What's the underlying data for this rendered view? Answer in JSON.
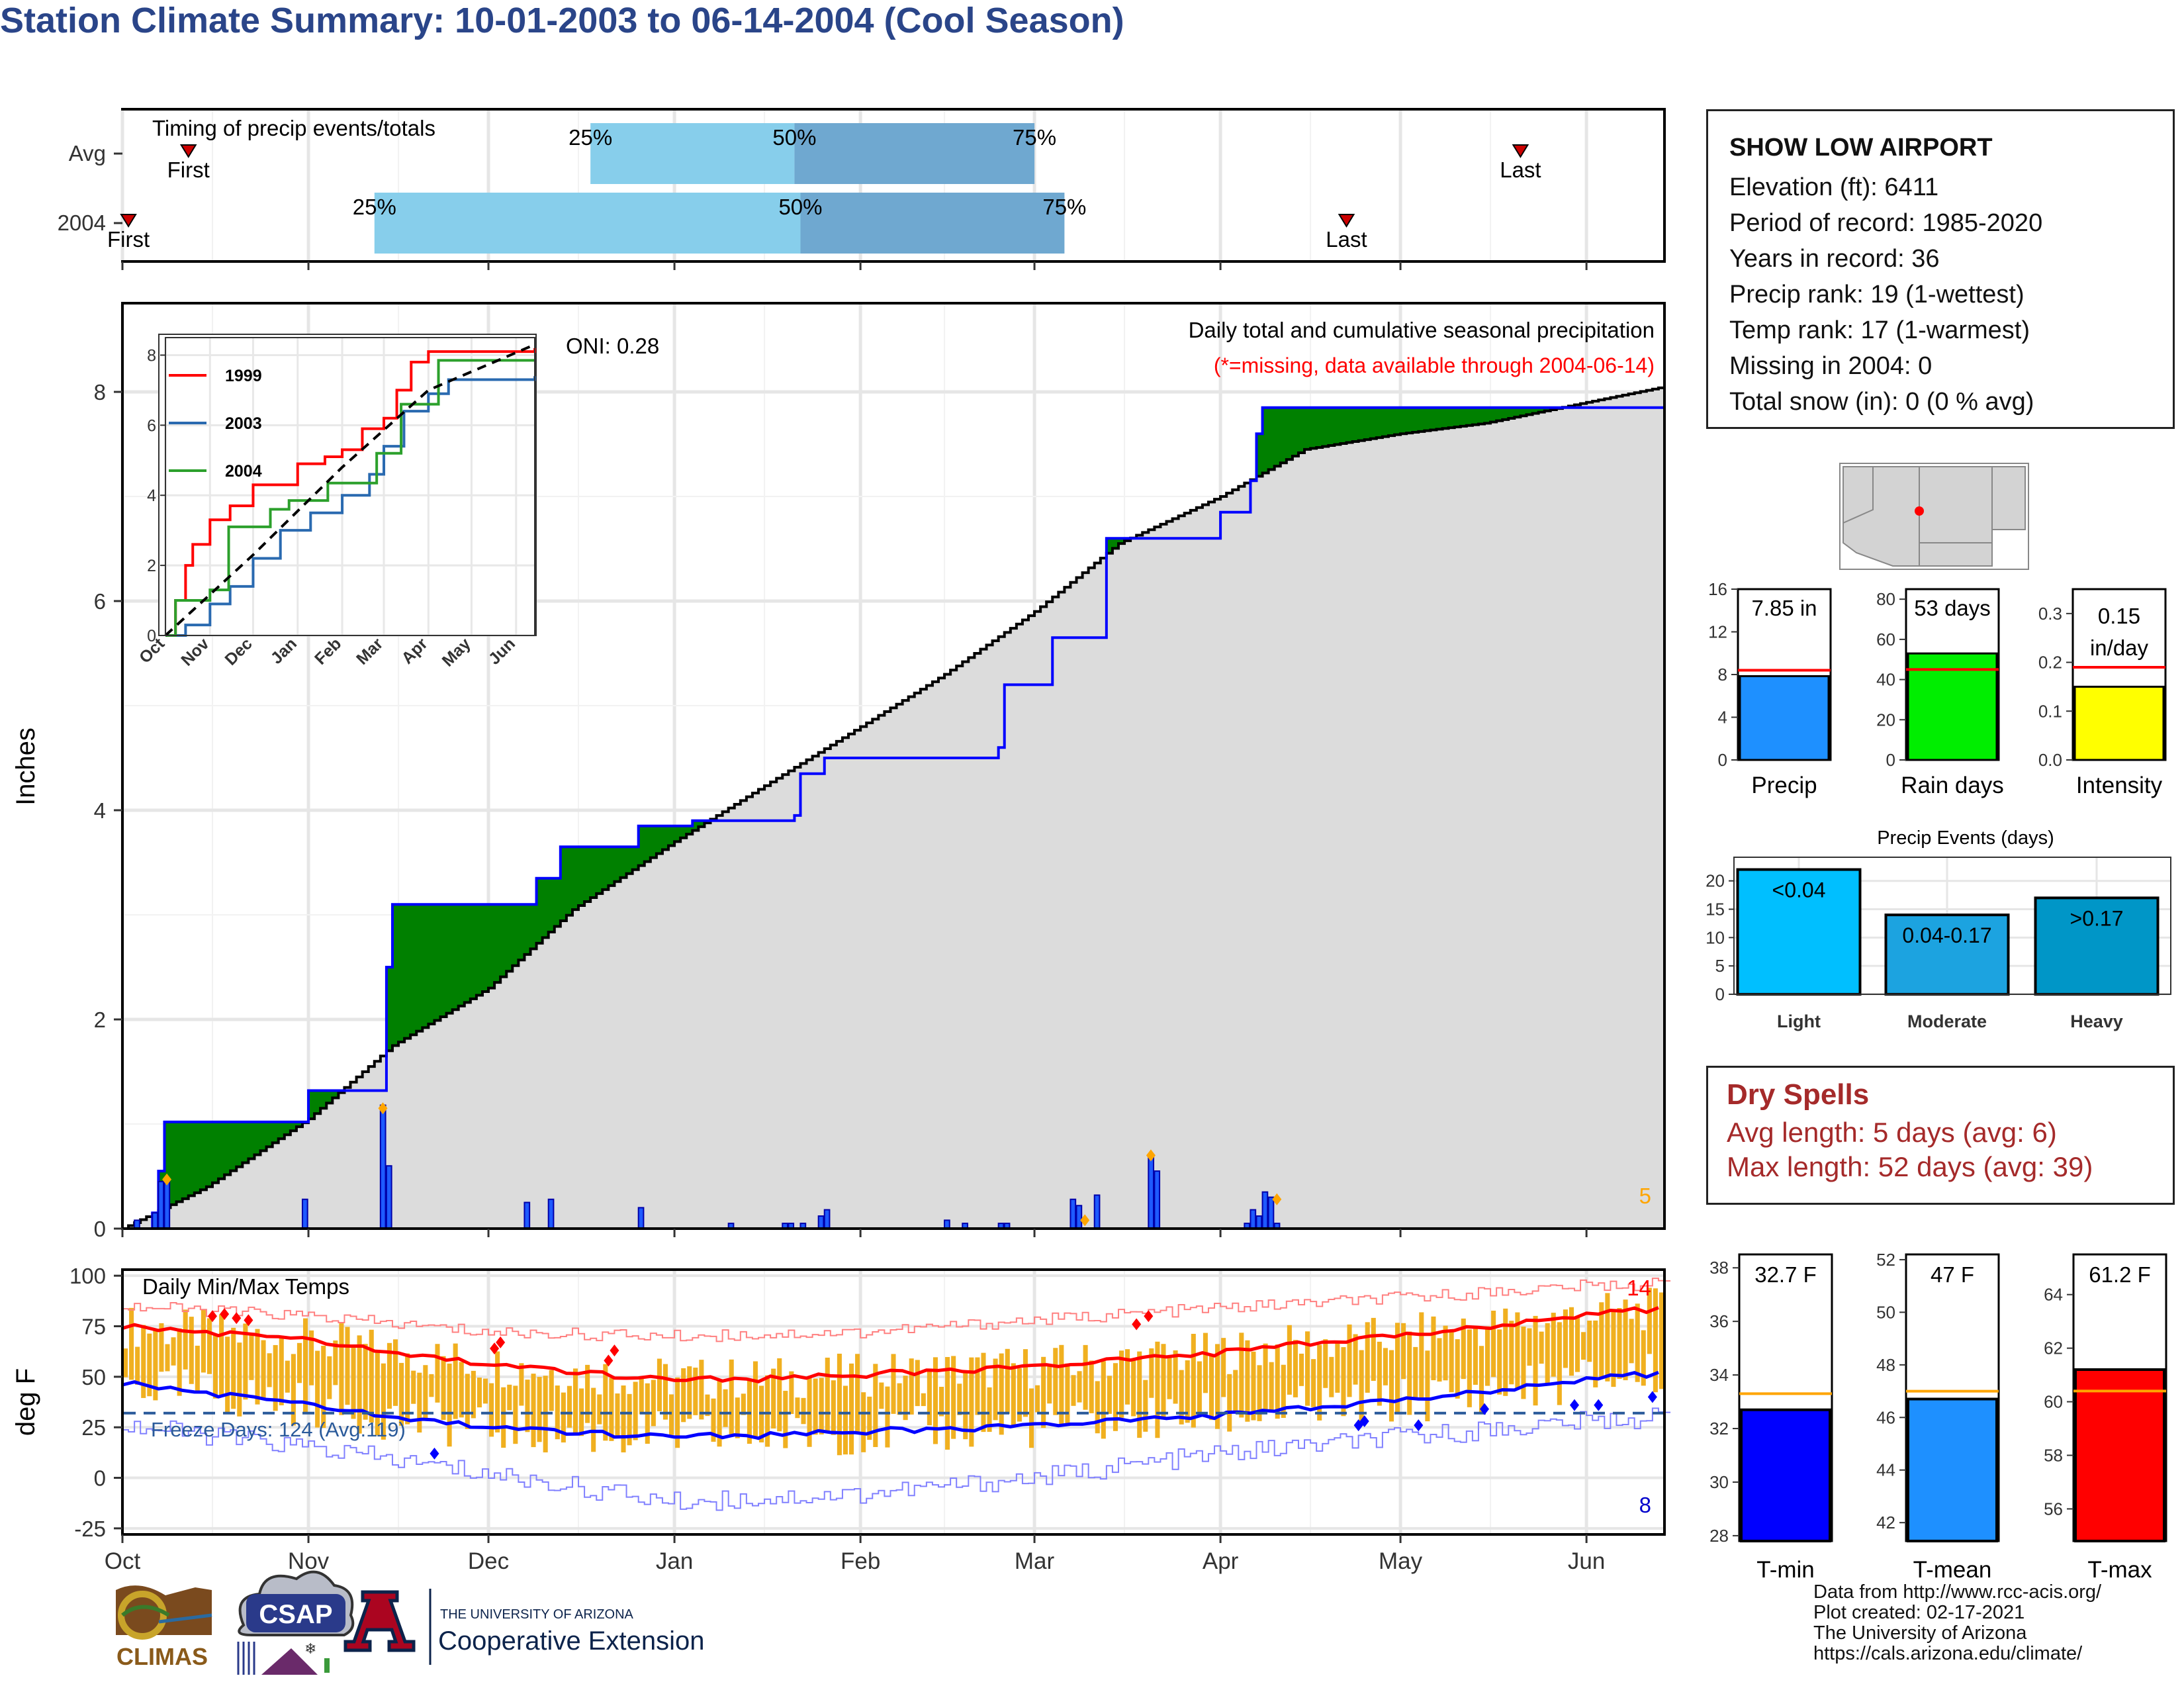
{
  "title": "Station Climate Summary: 10-01-2003 to 06-14-2004 (Cool Season)",
  "timing": {
    "title": "Timing of precip events/totals",
    "rows": [
      {
        "label": "Avg",
        "first": "Oct 12",
        "p25": "Dec 18",
        "p50": "Jan 21",
        "p75": "Mar 1",
        "last": "May 21"
      },
      {
        "label": "2004",
        "first": "Oct 2",
        "p25": "Nov 12",
        "p50": "Jan 22",
        "p75": "Mar 6",
        "last": "Apr 22"
      }
    ],
    "marker_labels": {
      "first": "First",
      "last": "Last",
      "p25": "25%",
      "p50": "50%",
      "p75": "75%"
    },
    "colors": {
      "light": "#87ceeb",
      "dark": "#6fa8d0",
      "marker": "#cc0000"
    }
  },
  "station": {
    "name": "SHOW LOW AIRPORT",
    "lines": [
      "Elevation (ft): 6411",
      "Period of record: 1985-2020",
      "Years in record: 36",
      "Precip rank: 19 (1-wettest)",
      "Temp rank: 17 (1-warmest)",
      "Missing in 2004: 0",
      "Total snow (in): 0 (0 % avg)"
    ]
  },
  "precip_panel": {
    "ylabel": "Inches",
    "note1": "Daily total and cumulative seasonal precipitation",
    "note2": "(*=missing, data available through 2004-06-14)",
    "oni": "ONI: 0.28",
    "corner_value": "5",
    "yticks": [
      "0",
      "2",
      "4",
      "6",
      "8"
    ]
  },
  "temp_panel": {
    "ylabel": "deg F",
    "title": "Daily Min/Max Temps",
    "freeze": "Freeze Days: 124 (Avg:119)",
    "max_count": "14",
    "min_count": "8",
    "yticks": [
      "100",
      "75",
      "50",
      "25",
      "0",
      "-25"
    ]
  },
  "months": [
    "Oct",
    "Nov",
    "Dec",
    "Jan",
    "Feb",
    "Mar",
    "Apr",
    "May",
    "Jun"
  ],
  "inset": {
    "yticks": [
      "0",
      "2",
      "4",
      "6",
      "8"
    ],
    "xticks": [
      "Oct",
      "Nov",
      "Dec",
      "Jan",
      "Feb",
      "Mar",
      "Apr",
      "May",
      "Jun"
    ],
    "legend": [
      "1999",
      "2003",
      "2004"
    ]
  },
  "summary_bars": {
    "precip": {
      "label": "Precip",
      "value_text": "7.85 in",
      "value": 7.85,
      "avg": 8.4,
      "max": 16,
      "ticks": [
        "16",
        "12",
        "8",
        "4",
        "0"
      ],
      "color": "#1e90ff"
    },
    "raindays": {
      "label": "Rain days",
      "value_text": "53 days",
      "value": 53,
      "avg": 45,
      "max": 85,
      "ticks": [
        "80",
        "60",
        "40",
        "20",
        "0"
      ],
      "color": "#00ee00"
    },
    "intensity": {
      "label": "Intensity",
      "value_text": "0.15",
      "value_text2": "in/day",
      "value": 0.15,
      "avg": 0.19,
      "max": 0.35,
      "ticks": [
        "0.3",
        "0.2",
        "0.1",
        "0.0"
      ],
      "color": "#ffff00"
    }
  },
  "events": {
    "title": "Precip Events (days)",
    "categories": [
      "Light",
      "Moderate",
      "Heavy"
    ],
    "values": [
      22,
      14,
      17
    ],
    "bar_labels": [
      "<0.04",
      "0.04-0.17",
      ">0.17"
    ],
    "ticks": [
      "20",
      "15",
      "10",
      "5",
      "0"
    ],
    "colors": [
      "#00bfff",
      "#1ca3e0",
      "#0096c7"
    ]
  },
  "dry_spells": {
    "title": "Dry Spells",
    "avg": "Avg length: 5 days (avg: 6)",
    "max": "Max length: 52 days (avg: 39)"
  },
  "temp_bars": {
    "tmin": {
      "label": "T-min",
      "value_text": "32.7 F",
      "value": 32.7,
      "avg": 33.3,
      "ticks": [
        "38",
        "36",
        "34",
        "32",
        "30",
        "28"
      ],
      "color": "#0000ff"
    },
    "tmean": {
      "label": "T-mean",
      "value_text": "47 F",
      "value": 46.7,
      "avg": 47.0,
      "ticks": [
        "52",
        "50",
        "48",
        "46",
        "44",
        "42"
      ],
      "color": "#1e90ff"
    },
    "tmax": {
      "label": "T-max",
      "value_text": "61.2 F",
      "value": 61.2,
      "avg": 60.4,
      "ticks": [
        "64",
        "62",
        "60",
        "58",
        "56"
      ],
      "color": "#ff0000"
    }
  },
  "credits": [
    "Data from http://www.rcc-acis.org/",
    "Plot created: 02-17-2021",
    "The University of Arizona",
    "https://cals.arizona.edu/climate/"
  ],
  "logos": {
    "climas": "CLIMAS",
    "csap": "CSAP",
    "ua_top": "THE UNIVERSITY OF ARIZONA",
    "ua_bottom": "Cooperative Extension"
  },
  "chart_data": {
    "type": "area",
    "title": "Daily total and cumulative seasonal precipitation",
    "ylabel": "Inches",
    "ylim": [
      0,
      8.8
    ],
    "x_domain": [
      "2003-10-01",
      "2004-06-14"
    ],
    "series": [
      {
        "name": "2004 cumulative",
        "points": [
          [
            "2003-10-01",
            0.0
          ],
          [
            "2003-10-06",
            0.15
          ],
          [
            "2003-10-07",
            0.55
          ],
          [
            "2003-10-08",
            1.02
          ],
          [
            "2003-10-29",
            1.02
          ],
          [
            "2003-11-01",
            1.32
          ],
          [
            "2003-11-13",
            1.32
          ],
          [
            "2003-11-14",
            2.5
          ],
          [
            "2003-11-15",
            3.1
          ],
          [
            "2003-12-08",
            3.1
          ],
          [
            "2003-12-09",
            3.35
          ],
          [
            "2003-12-12",
            3.35
          ],
          [
            "2003-12-13",
            3.65
          ],
          [
            "2003-12-25",
            3.65
          ],
          [
            "2003-12-26",
            3.85
          ],
          [
            "2004-01-04",
            3.9
          ],
          [
            "2004-01-21",
            3.95
          ],
          [
            "2004-01-22",
            4.35
          ],
          [
            "2004-01-26",
            4.5
          ],
          [
            "2004-02-24",
            4.6
          ],
          [
            "2004-02-25",
            5.2
          ],
          [
            "2004-03-04",
            5.65
          ],
          [
            "2004-03-12",
            5.65
          ],
          [
            "2004-03-13",
            6.6
          ],
          [
            "2004-04-01",
            6.85
          ],
          [
            "2004-04-06",
            7.15
          ],
          [
            "2004-04-07",
            7.6
          ],
          [
            "2004-04-08",
            7.85
          ],
          [
            "2004-06-14",
            7.85
          ]
        ]
      },
      {
        "name": "Avg cumulative",
        "points": [
          [
            "2003-10-01",
            0.0
          ],
          [
            "2003-10-15",
            0.4
          ],
          [
            "2003-11-01",
            1.05
          ],
          [
            "2003-11-15",
            1.75
          ],
          [
            "2003-12-01",
            2.3
          ],
          [
            "2003-12-15",
            3.05
          ],
          [
            "2004-01-01",
            3.7
          ],
          [
            "2004-01-15",
            4.2
          ],
          [
            "2004-02-01",
            4.8
          ],
          [
            "2004-02-15",
            5.3
          ],
          [
            "2004-03-01",
            5.9
          ],
          [
            "2004-03-15",
            6.55
          ],
          [
            "2004-04-01",
            7.0
          ],
          [
            "2004-04-15",
            7.45
          ],
          [
            "2004-05-01",
            7.6
          ],
          [
            "2004-05-15",
            7.7
          ],
          [
            "2004-06-01",
            7.9
          ],
          [
            "2004-06-14",
            8.05
          ]
        ]
      }
    ],
    "daily_precip": [
      [
        "2003-10-03",
        0.08
      ],
      [
        "2003-10-06",
        0.15
      ],
      [
        "2003-10-07",
        0.45
      ],
      [
        "2003-10-08",
        0.47
      ],
      [
        "2003-10-31",
        0.28
      ],
      [
        "2003-11-13",
        1.18
      ],
      [
        "2003-11-14",
        0.6
      ],
      [
        "2003-12-07",
        0.25
      ],
      [
        "2003-12-11",
        0.28
      ],
      [
        "2003-12-26",
        0.2
      ],
      [
        "2004-01-10",
        0.05
      ],
      [
        "2004-01-19",
        0.05
      ],
      [
        "2004-01-20",
        0.05
      ],
      [
        "2004-01-22",
        0.05
      ],
      [
        "2004-01-25",
        0.12
      ],
      [
        "2004-01-26",
        0.18
      ],
      [
        "2004-02-15",
        0.08
      ],
      [
        "2004-02-18",
        0.05
      ],
      [
        "2004-02-24",
        0.05
      ],
      [
        "2004-02-25",
        0.05
      ],
      [
        "2004-03-07",
        0.28
      ],
      [
        "2004-03-08",
        0.22
      ],
      [
        "2004-03-11",
        0.32
      ],
      [
        "2004-03-20",
        0.68
      ],
      [
        "2004-03-21",
        0.55
      ],
      [
        "2004-04-05",
        0.05
      ],
      [
        "2004-04-06",
        0.18
      ],
      [
        "2004-04-07",
        0.12
      ],
      [
        "2004-04-08",
        0.35
      ],
      [
        "2004-04-09",
        0.3
      ],
      [
        "2004-04-10",
        0.05
      ]
    ],
    "record_markers": [
      [
        "2003-10-08",
        0.47
      ],
      [
        "2003-11-13",
        1.15
      ],
      [
        "2004-03-09",
        0.08
      ],
      [
        "2004-03-20",
        0.7
      ],
      [
        "2004-04-10",
        0.28
      ]
    ],
    "temperature": {
      "ylim": [
        -28,
        103
      ],
      "series": [
        {
          "name": "Avg max",
          "points": [
            [
              "2003-10-01",
              75
            ],
            [
              "2003-10-15",
              72
            ],
            [
              "2003-11-01",
              68
            ],
            [
              "2003-11-15",
              62
            ],
            [
              "2003-12-01",
              56
            ],
            [
              "2003-12-15",
              52
            ],
            [
              "2004-01-01",
              49
            ],
            [
              "2004-01-15",
              49
            ],
            [
              "2004-02-01",
              51
            ],
            [
              "2004-02-15",
              53
            ],
            [
              "2004-03-01",
              55
            ],
            [
              "2004-03-15",
              58
            ],
            [
              "2004-04-01",
              62
            ],
            [
              "2004-04-15",
              66
            ],
            [
              "2004-05-01",
              70
            ],
            [
              "2004-05-15",
              75
            ],
            [
              "2004-06-01",
              81
            ],
            [
              "2004-06-14",
              84
            ]
          ]
        },
        {
          "name": "Avg min",
          "points": [
            [
              "2003-10-01",
              47
            ],
            [
              "2003-10-15",
              42
            ],
            [
              "2003-11-01",
              36
            ],
            [
              "2003-11-15",
              30
            ],
            [
              "2003-12-01",
              25
            ],
            [
              "2003-12-15",
              22
            ],
            [
              "2004-01-01",
              21
            ],
            [
              "2004-01-15",
              21
            ],
            [
              "2004-02-01",
              23
            ],
            [
              "2004-02-15",
              24
            ],
            [
              "2004-03-01",
              26
            ],
            [
              "2004-03-15",
              28
            ],
            [
              "2004-04-01",
              31
            ],
            [
              "2004-04-15",
              34
            ],
            [
              "2004-05-01",
              38
            ],
            [
              "2004-05-15",
              43
            ],
            [
              "2004-06-01",
              49
            ],
            [
              "2004-06-14",
              52
            ]
          ]
        },
        {
          "name": "Record max",
          "points": [
            [
              "2003-10-01",
              85
            ],
            [
              "2003-11-01",
              80
            ],
            [
              "2003-12-01",
              72
            ],
            [
              "2004-01-01",
              70
            ],
            [
              "2004-02-01",
              72
            ],
            [
              "2004-03-01",
              78
            ],
            [
              "2004-04-01",
              84
            ],
            [
              "2004-05-01",
              89
            ],
            [
              "2004-06-01",
              95
            ],
            [
              "2004-06-14",
              96
            ]
          ]
        },
        {
          "name": "Record min",
          "points": [
            [
              "2003-10-01",
              26
            ],
            [
              "2003-11-01",
              15
            ],
            [
              "2003-12-01",
              2
            ],
            [
              "2004-01-01",
              -12
            ],
            [
              "2004-02-01",
              -8
            ],
            [
              "2004-03-01",
              0
            ],
            [
              "2004-04-01",
              12
            ],
            [
              "2004-05-01",
              20
            ],
            [
              "2004-06-01",
              28
            ],
            [
              "2004-06-14",
              30
            ]
          ]
        }
      ],
      "freeze_line": 32
    }
  }
}
